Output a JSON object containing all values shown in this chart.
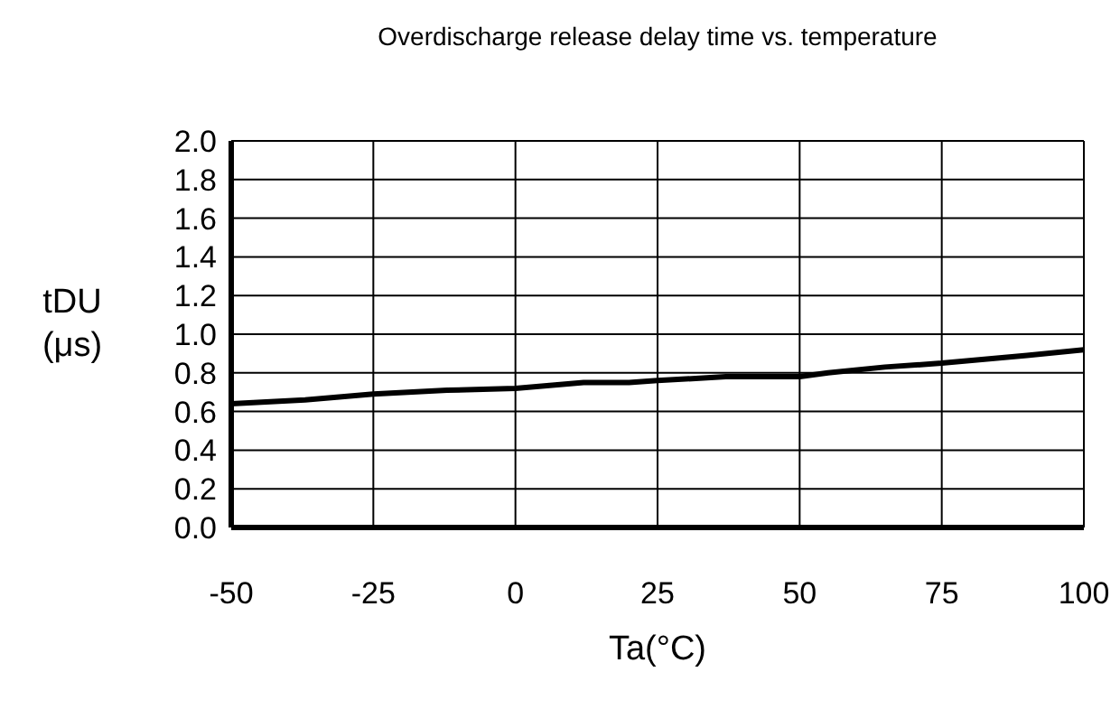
{
  "chart_data": {
    "type": "line",
    "title": "Overdischarge release delay time vs. temperature",
    "xlabel": "Ta(°C)",
    "ylabel": "tDU (μs)",
    "x": [
      -50,
      -37,
      -25,
      -12,
      0,
      12,
      20,
      25,
      37,
      50,
      55,
      65,
      75,
      90,
      100
    ],
    "series": [
      {
        "color": "#000000",
        "values": [
          0.64,
          0.66,
          0.69,
          0.71,
          0.72,
          0.75,
          0.75,
          0.76,
          0.78,
          0.78,
          0.8,
          0.83,
          0.85,
          0.89,
          0.92
        ]
      }
    ],
    "xlim": [
      -50,
      100
    ],
    "xticks": [
      -50,
      -25,
      0,
      25,
      50,
      75,
      100
    ],
    "ylim": [
      0,
      2
    ],
    "yticks": [
      {
        "value": 0,
        "label": "0.0"
      },
      {
        "value": 0.2,
        "label": "0.2"
      },
      {
        "value": 0.4,
        "label": "0.4"
      },
      {
        "value": 0.6,
        "label": "0.6"
      },
      {
        "value": 0.8,
        "label": "0.8"
      },
      {
        "value": 1,
        "label": "1.0"
      },
      {
        "value": 1.2,
        "label": "1.2"
      },
      {
        "value": 1.4,
        "label": "1.4"
      },
      {
        "value": 1.6,
        "label": "1.6"
      },
      {
        "value": 1.8,
        "label": "1.8"
      },
      {
        "value": 2,
        "label": "2.0"
      }
    ],
    "grid": true,
    "marker": "none",
    "line_style": "solid"
  }
}
